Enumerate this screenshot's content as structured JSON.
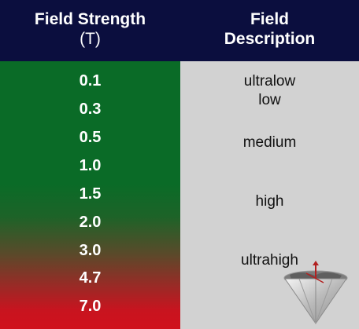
{
  "header": {
    "col1_title": "Field Strength",
    "col1_unit": "(T)",
    "col2_title_line1": "Field",
    "col2_title_line2": "Description"
  },
  "rows": [
    {
      "strength": "0.1"
    },
    {
      "strength": "0.3"
    },
    {
      "strength": "0.5"
    },
    {
      "strength": "1.0"
    },
    {
      "strength": "1.5"
    },
    {
      "strength": "2.0"
    },
    {
      "strength": "3.0"
    },
    {
      "strength": "4.7"
    },
    {
      "strength": "7.0"
    }
  ],
  "descriptions": [
    "ultralow",
    "low",
    "medium",
    "high",
    "ultrahigh"
  ],
  "colors": {
    "header_bg": "#0b0e3e",
    "low_field_green": "#0a6b27",
    "high_field_red": "#d0111c",
    "desc_bg": "#d2d2d2"
  },
  "icons": {
    "logo": "diamond-globe-icon"
  }
}
